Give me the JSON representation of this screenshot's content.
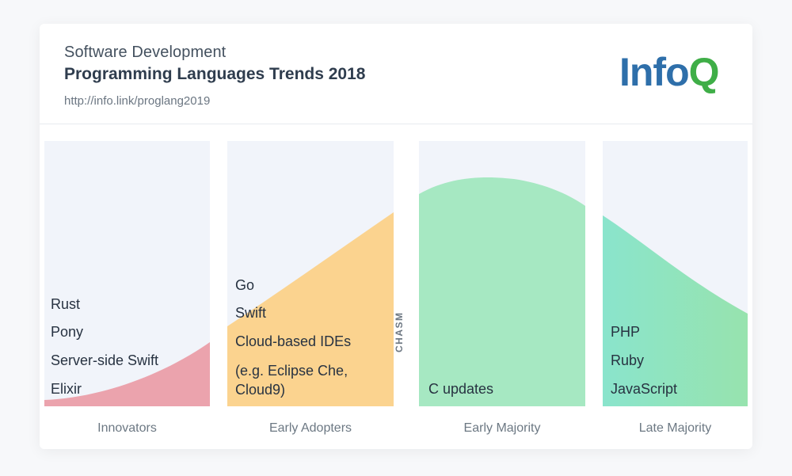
{
  "header": {
    "subtitle": "Software Development",
    "title": "Programming Languages Trends 2018",
    "url": "http://info.link/proglang2019",
    "logo_main": "Info",
    "logo_q": "Q"
  },
  "colors": {
    "innovators": "#eba3ad",
    "early_adopters": "#fbd38f",
    "early_majority": "#a6e8c2",
    "late_majority_start": "#8ae4cc",
    "late_majority_end": "#97e3ae",
    "panel_bg": "#f1f4fa"
  },
  "chasm_label": "CHASM",
  "phases": [
    {
      "name": "Innovators",
      "items": [
        "Rust",
        "Pony",
        "Server-side Swift",
        "Elixir"
      ]
    },
    {
      "name": "Early Adopters",
      "items": [
        "Go",
        "Swift",
        "Cloud-based IDEs",
        "(e.g. Eclipse Che,",
        "Cloud9)"
      ]
    },
    {
      "name": "Early Majority",
      "items": [
        "C updates"
      ]
    },
    {
      "name": "Late Majority",
      "items": [
        "PHP",
        "Ruby",
        "JavaScript"
      ]
    }
  ]
}
